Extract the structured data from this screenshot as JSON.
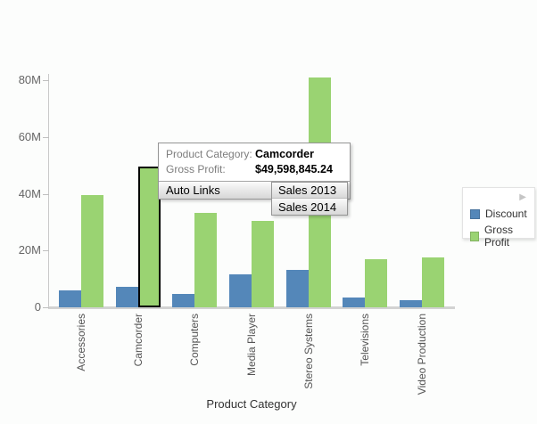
{
  "chart_data": {
    "type": "bar",
    "categories": [
      "Accessories",
      "Camcorder",
      "Computers",
      "Media Player",
      "Stereo Systems",
      "Televisions",
      "Video Production"
    ],
    "series": [
      {
        "name": "Discount",
        "color": "#5487b9",
        "values": [
          5.9,
          7.3,
          4.6,
          11.5,
          13.2,
          3.5,
          2.6
        ]
      },
      {
        "name": "Gross Profit",
        "color": "#9ad372",
        "values": [
          39.6,
          49.6,
          33.1,
          30.4,
          80.9,
          16.8,
          17.6
        ]
      }
    ],
    "value_unit": "millions",
    "title": "",
    "xlabel": "Product Category",
    "ylabel": "",
    "ylim": [
      0,
      85
    ],
    "yticks": [
      {
        "value": 0,
        "label": "0"
      },
      {
        "value": 20,
        "label": "20M"
      },
      {
        "value": 40,
        "label": "40M"
      },
      {
        "value": 60,
        "label": "60M"
      },
      {
        "value": 80,
        "label": "80M"
      }
    ],
    "grid": false,
    "legend_position": "right",
    "highlight": {
      "category": "Camcorder",
      "series": "Gross Profit"
    }
  },
  "legend": {
    "collapse_arrow_icon": "▶",
    "items": [
      {
        "label": "Discount",
        "color": "#5487b9"
      },
      {
        "label": "Gross Profit",
        "color": "#9ad372"
      }
    ]
  },
  "tooltip": {
    "rows": [
      {
        "label": "Product Category:",
        "value": "Camcorder"
      },
      {
        "label": "Gross Profit:",
        "value": "$49,598,845.24"
      }
    ],
    "menu": {
      "label": "Auto Links"
    },
    "submenu": [
      {
        "label": "Sales 2013"
      },
      {
        "label": "Sales 2014"
      }
    ]
  }
}
